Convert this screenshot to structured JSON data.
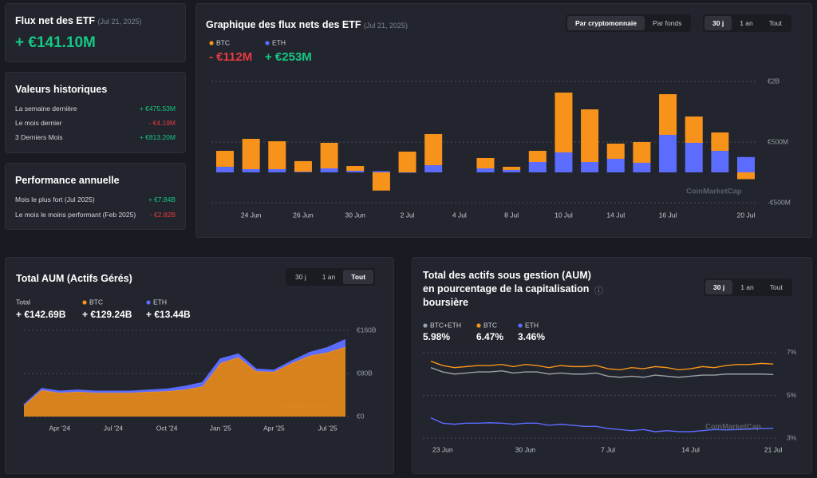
{
  "summary": {
    "title": "Flux net des ETF",
    "date": "(Jul 21, 2025)",
    "value": "+ €141.10M"
  },
  "historical": {
    "title": "Valeurs historiques",
    "rows": [
      [
        "La semaine dernière",
        "+ €475.53M"
      ],
      [
        "Le mois dernier",
        "- €4.19M"
      ],
      [
        "3 Derniers Mois",
        "+ €813.20M"
      ]
    ]
  },
  "annual": {
    "title": "Performance annuelle",
    "rows": [
      [
        "Mois le plus fort (Jul 2025)",
        "+ €7.84B"
      ],
      [
        "Le mois le moins performant (Feb 2025)",
        "- €2.82B"
      ]
    ]
  },
  "chart_data": [
    {
      "type": "bar",
      "stacked": true,
      "title": "Graphique des flux nets des ETF",
      "subtitle": "(Jul 21, 2025)",
      "views": [
        "Par cryptomonnaie",
        "Par fonds"
      ],
      "selected_view": 0,
      "ranges": [
        "30 j",
        "1 an",
        "Tout"
      ],
      "selected_range": 0,
      "categories": [
        null,
        "24 Jun",
        null,
        "26 Jun",
        null,
        "30 Jun",
        null,
        "2 Jul",
        null,
        "4 Jul",
        null,
        "8 Jul",
        null,
        "10 Jul",
        null,
        "14 Jul",
        null,
        "16 Jul",
        null,
        null,
        "20 Jul"
      ],
      "series": [
        {
          "name": "ETH",
          "color": "#5b6cff",
          "legend_value": "+ €253M",
          "values": [
            92,
            53,
            53,
            10,
            66,
            26,
            20,
            0,
            118,
            null,
            66,
            40,
            171,
            329,
            171,
            224,
            158,
            618,
            487,
            355,
            253
          ]
        },
        {
          "name": "BTC",
          "color": "#f7931a",
          "legend_value": "- €112M",
          "values": [
            263,
            500,
            460,
            175,
            421,
            79,
            -300,
            342,
            514,
            null,
            171,
            52,
            184,
            987,
            868,
            250,
            342,
            671,
            434,
            303,
            -112
          ]
        }
      ],
      "ylim": [
        -600,
        1600
      ],
      "yticks": [
        {
          "value": 1500,
          "label": "€2B"
        },
        {
          "value": 500,
          "label": "€500M"
        },
        {
          "value": -500,
          "label": "-€500M"
        }
      ],
      "grid": true,
      "watermark": "CoinMarketCap"
    },
    {
      "type": "area",
      "stacked": true,
      "title": "Total AUM (Actifs Gérés)",
      "ranges": [
        "30 j",
        "1 an",
        "Tout"
      ],
      "selected_range": 2,
      "total": {
        "label": "Total",
        "value": "+ €142.69B"
      },
      "categories": [
        null,
        null,
        "Apr '24",
        null,
        null,
        "Jul '24",
        null,
        null,
        "Oct '24",
        null,
        null,
        "Jan '25",
        null,
        null,
        "Apr '25",
        null,
        null,
        "Jul '25",
        null
      ],
      "series": [
        {
          "name": "BTC",
          "color": "#f7931a",
          "legend_value": "+ €129.24B",
          "values": [
            21,
            49,
            44,
            46,
            44,
            44,
            44,
            46,
            47,
            50,
            56,
            99,
            110,
            84,
            83,
            99,
            113,
            119,
            129.24
          ]
        },
        {
          "name": "ETH",
          "color": "#5b6cff",
          "legend_value": "+ €13.44B",
          "values": [
            1,
            3,
            3,
            3,
            3,
            3,
            3,
            3,
            4,
            6,
            7,
            8,
            6,
            4,
            3,
            4,
            6,
            9,
            13.44
          ]
        }
      ],
      "ylim": [
        0,
        160
      ],
      "yticks": [
        {
          "value": 160,
          "label": "€160B"
        },
        {
          "value": 80,
          "label": "€80B"
        },
        {
          "value": 0,
          "label": "€0"
        }
      ],
      "grid": true,
      "watermark": "CoinMarketCap"
    },
    {
      "type": "line",
      "title": "Total des actifs sous gestion (AUM) en pourcentage de la capitalisation boursière",
      "info": "ⓘ",
      "ranges": [
        "30 j",
        "1 an",
        "Tout"
      ],
      "selected_range": 0,
      "categories": [
        null,
        "23 Jun",
        null,
        null,
        null,
        null,
        null,
        null,
        "30 Jun",
        null,
        null,
        null,
        null,
        null,
        null,
        "7 Jul",
        null,
        null,
        null,
        null,
        null,
        null,
        "14 Jul",
        null,
        null,
        null,
        null,
        null,
        null,
        "21 Jul"
      ],
      "series": [
        {
          "name": "BTC+ETH",
          "color": "#9aa0a6",
          "legend_value": "5.98%",
          "values": [
            6.3,
            6.1,
            6.0,
            6.05,
            6.1,
            6.1,
            6.15,
            6.05,
            6.1,
            6.1,
            6.0,
            6.05,
            6.0,
            6.0,
            6.05,
            5.9,
            5.85,
            5.9,
            5.85,
            5.95,
            5.9,
            5.85,
            5.9,
            5.95,
            5.95,
            6.0,
            6.0,
            6.0,
            6.0,
            5.98
          ]
        },
        {
          "name": "BTC",
          "color": "#f7931a",
          "legend_value": "6.47%",
          "values": [
            6.6,
            6.4,
            6.3,
            6.35,
            6.4,
            6.4,
            6.45,
            6.35,
            6.45,
            6.4,
            6.3,
            6.4,
            6.35,
            6.35,
            6.4,
            6.25,
            6.2,
            6.3,
            6.25,
            6.35,
            6.3,
            6.2,
            6.25,
            6.35,
            6.3,
            6.4,
            6.45,
            6.45,
            6.5,
            6.47
          ]
        },
        {
          "name": "ETH",
          "color": "#5b6cff",
          "legend_value": "3.46%",
          "values": [
            3.95,
            3.7,
            3.65,
            3.7,
            3.7,
            3.72,
            3.7,
            3.65,
            3.7,
            3.7,
            3.6,
            3.65,
            3.6,
            3.55,
            3.55,
            3.45,
            3.4,
            3.35,
            3.4,
            3.3,
            3.35,
            3.3,
            3.3,
            3.35,
            3.4,
            3.38,
            3.4,
            3.42,
            3.45,
            3.46
          ]
        }
      ],
      "ylim": [
        2.75,
        7.25
      ],
      "yticks": [
        {
          "value": 7,
          "label": "7%"
        },
        {
          "value": 5,
          "label": "5%"
        },
        {
          "value": 3,
          "label": "3%"
        }
      ],
      "grid": true,
      "watermark": "CoinMarketCap"
    }
  ]
}
